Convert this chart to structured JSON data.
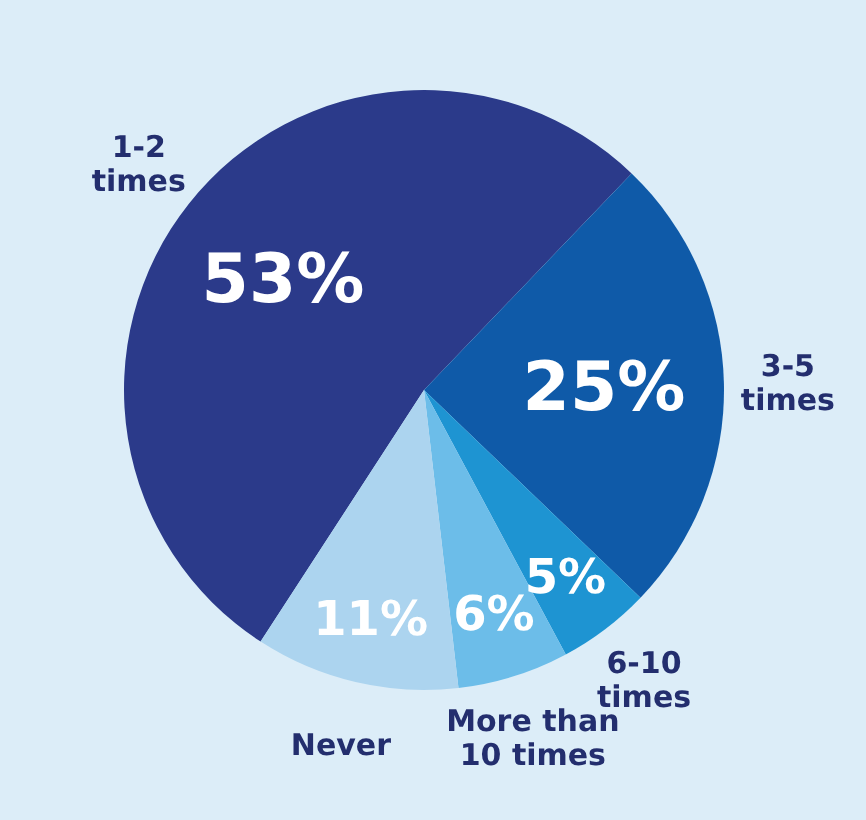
{
  "chart_data": {
    "type": "pie",
    "categories": [
      "1-2 times",
      "3-5 times",
      "6-10 times",
      "More than 10 times",
      "Never"
    ],
    "values": [
      53,
      25,
      5,
      6,
      11
    ],
    "value_labels": [
      "53%",
      "25%",
      "5%",
      "6%",
      "11%"
    ],
    "colors": [
      "#2b3a8a",
      "#0f5aa8",
      "#1e94d2",
      "#6cbde9",
      "#acd4ef"
    ]
  }
}
